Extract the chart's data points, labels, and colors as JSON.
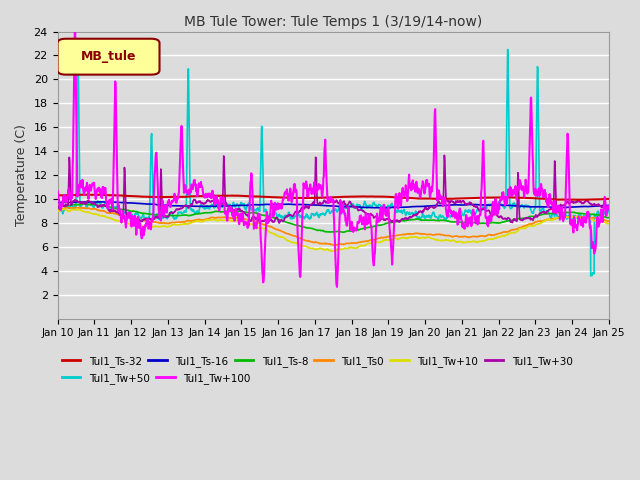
{
  "title": "MB Tule Tower: Tule Temps 1 (3/19/14-now)",
  "ylabel": "Temperature (C)",
  "ylim": [
    0,
    24
  ],
  "yticks": [
    2,
    4,
    6,
    8,
    10,
    12,
    14,
    16,
    18,
    20,
    22,
    24
  ],
  "xtick_labels": [
    "Jan 10",
    "Jan 11",
    "Jan 12",
    "Jan 13",
    "Jan 14",
    "Jan 15",
    "Jan 16",
    "Jan 17",
    "Jan 18",
    "Jan 19",
    "Jan 20",
    "Jan 21",
    "Jan 22",
    "Jan 23",
    "Jan 24",
    "Jan 25"
  ],
  "bg_color": "#dcdcdc",
  "legend_box": {
    "label": "MB_tule",
    "facecolor": "#ffff99",
    "edgecolor": "#8b0000",
    "textcolor": "#8b0000"
  },
  "series": [
    {
      "label": "Tul1_Ts-32",
      "color": "#cc0000",
      "lw": 1.5,
      "zorder": 5
    },
    {
      "label": "Tul1_Ts-16",
      "color": "#0000cc",
      "lw": 1.2,
      "zorder": 4
    },
    {
      "label": "Tul1_Ts-8",
      "color": "#00bb00",
      "lw": 1.2,
      "zorder": 4
    },
    {
      "label": "Tul1_Ts0",
      "color": "#ff8800",
      "lw": 1.2,
      "zorder": 4
    },
    {
      "label": "Tul1_Tw+10",
      "color": "#dddd00",
      "lw": 1.2,
      "zorder": 4
    },
    {
      "label": "Tul1_Tw+30",
      "color": "#aa00aa",
      "lw": 1.2,
      "zorder": 4
    },
    {
      "label": "Tul1_Tw+50",
      "color": "#00cccc",
      "lw": 1.2,
      "zorder": 3
    },
    {
      "label": "Tul1_Tw+100",
      "color": "#ff00ff",
      "lw": 1.5,
      "zorder": 6
    }
  ]
}
